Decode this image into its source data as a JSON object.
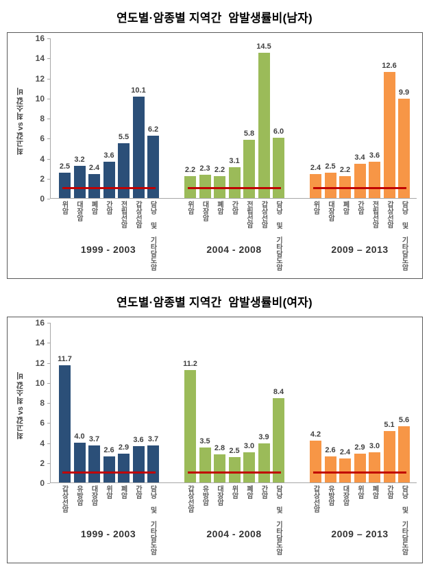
{
  "chart_data": [
    {
      "type": "bar",
      "title": "연도별·암종별 지역간  암발생률비(남자)",
      "ylabel": "최고값 vs 최소값 비",
      "ylim": [
        0,
        16
      ],
      "ytick_step": 2,
      "grid": false,
      "legend": "none",
      "layout": "three grouped panels sharing one y-axis, category labels vertical",
      "reference_line": {
        "y": 1,
        "color": "#C00000"
      },
      "categories": [
        "위암",
        "대장암",
        "폐암",
        "간암",
        "전립선암",
        "갑상선암",
        "담낭 및 기타담도암"
      ],
      "series": [
        {
          "name": "1999 - 2003",
          "color": "#2B4F78",
          "values": [
            2.5,
            3.2,
            2.4,
            3.6,
            5.5,
            10.1,
            6.2
          ]
        },
        {
          "name": "2004 - 2008",
          "color": "#9BBB59",
          "values": [
            2.2,
            2.3,
            2.2,
            3.1,
            5.8,
            14.5,
            6.0
          ]
        },
        {
          "name": "2009 – 2013",
          "color": "#F79646",
          "values": [
            2.4,
            2.5,
            2.2,
            3.4,
            3.6,
            12.6,
            9.9
          ]
        }
      ]
    },
    {
      "type": "bar",
      "title": "연도별·암종별 지역간  암발생률비(여자)",
      "ylabel": "최고값 vs 최소값 비",
      "ylim": [
        0,
        16
      ],
      "ytick_step": 2,
      "grid": false,
      "legend": "none",
      "layout": "three grouped panels sharing one y-axis, category labels vertical",
      "reference_line": {
        "y": 1,
        "color": "#C00000"
      },
      "categories": [
        "갑상선암",
        "유방암",
        "대장암",
        "위암",
        "폐암",
        "간암",
        "담낭 및 기타담도암"
      ],
      "series": [
        {
          "name": "1999 - 2003",
          "color": "#2B4F78",
          "values": [
            11.7,
            4.0,
            3.7,
            2.6,
            2.9,
            3.6,
            3.7
          ]
        },
        {
          "name": "2004 - 2008",
          "color": "#9BBB59",
          "values": [
            11.2,
            3.5,
            2.8,
            2.5,
            3.0,
            3.9,
            8.4
          ]
        },
        {
          "name": "2009 – 2013",
          "color": "#F79646",
          "values": [
            4.2,
            2.6,
            2.4,
            2.9,
            3.0,
            5.1,
            5.6
          ]
        }
      ]
    }
  ],
  "colors": {
    "axis": "#A6A6A6",
    "frame_border": "#595959",
    "series_1999_2003": "#2B4F78",
    "series_2004_2008": "#9BBB59",
    "series_2009_2013": "#F79646",
    "reference_line": "#C00000"
  }
}
